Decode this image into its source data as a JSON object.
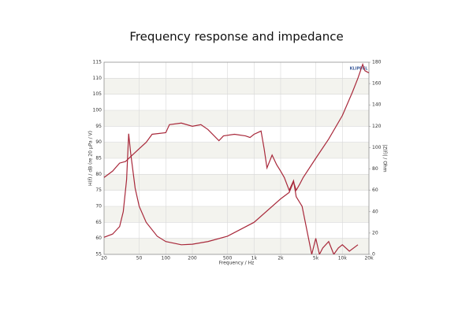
{
  "chart_data": {
    "type": "line",
    "title": "Frequency response and impedance",
    "x_label": "Frequency / Hz",
    "y_label": "H(f) / dB (re 20 µPa / V)",
    "y2_label": "|Z(f)| / Ohm",
    "logo": "KLIPPEL",
    "log_x": true,
    "grid": true,
    "xlim": [
      20,
      20000
    ],
    "xticks": [
      20,
      50,
      100,
      200,
      500,
      {
        "value": 1000,
        "label": "1k"
      },
      {
        "value": 2000,
        "label": "2k"
      },
      {
        "value": 5000,
        "label": "5k"
      },
      {
        "value": 10000,
        "label": "10k"
      },
      {
        "value": 20000,
        "label": "20k"
      }
    ],
    "ylim": [
      55,
      115
    ],
    "yticks": [
      55,
      60,
      65,
      70,
      75,
      80,
      85,
      90,
      95,
      100,
      105,
      110,
      115
    ],
    "y2lim": [
      0,
      180
    ],
    "y2ticks": [
      0,
      20,
      40,
      60,
      80,
      100,
      120,
      140,
      160,
      180
    ],
    "series": [
      {
        "color": "#a8283a",
        "x": [
          20,
          25,
          30,
          35,
          40,
          50,
          60,
          70,
          100,
          110,
          150,
          200,
          250,
          300,
          400,
          450,
          600,
          800,
          900,
          1000,
          1200,
          1300,
          1400,
          1600,
          1800,
          2000,
          2200,
          2500,
          2800,
          3000,
          3500,
          4000,
          4500,
          5000,
          5500,
          6000,
          7000,
          8000,
          9000,
          10000,
          12000,
          15000
        ],
        "values": [
          79,
          81,
          83.5,
          84,
          85.5,
          88,
          90,
          92.5,
          93,
          95.5,
          96,
          95,
          95.5,
          94,
          90.5,
          92,
          92.5,
          92,
          91.5,
          92.5,
          93.5,
          88,
          82,
          86,
          83,
          81,
          79,
          75,
          78,
          73,
          70,
          62,
          55,
          60,
          55,
          57,
          59,
          55,
          57,
          58,
          56,
          58
        ]
      },
      {
        "color": "#a8283a",
        "axis": "y2",
        "x": [
          20,
          25,
          30,
          33,
          36,
          38,
          40,
          45,
          50,
          60,
          80,
          100,
          150,
          200,
          300,
          500,
          1000,
          2000,
          2500,
          2800,
          3000,
          3300,
          3600,
          5000,
          7000,
          10000,
          13000,
          15000,
          17000,
          18000,
          20000
        ],
        "values": [
          16,
          19,
          26,
          40,
          70,
          113,
          95,
          62,
          45,
          30,
          17,
          12,
          9,
          9.5,
          12,
          17,
          30,
          52,
          58,
          68,
          60,
          66,
          72,
          90,
          108,
          130,
          152,
          165,
          178,
          172,
          170
        ]
      }
    ]
  }
}
